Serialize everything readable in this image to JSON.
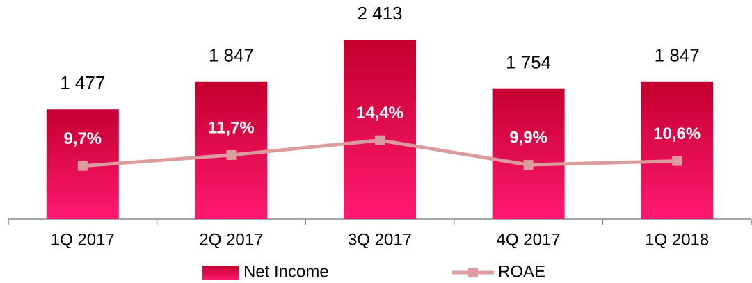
{
  "chart_data": {
    "type": "bar",
    "categories": [
      "1Q 2017",
      "2Q 2017",
      "3Q 2017",
      "4Q 2017",
      "1Q 2018"
    ],
    "series": [
      {
        "name": "Net Income",
        "color": "#c4002f",
        "values": [
          1477,
          1847,
          2413,
          1754,
          1847
        ],
        "value_labels": [
          "1 477",
          "1 847",
          "2 413",
          "1 754",
          "1 847"
        ]
      },
      {
        "name": "ROAE",
        "type": "line",
        "axis": "y2",
        "color": "#dc9c9c",
        "values": [
          9.7,
          11.7,
          14.4,
          9.9,
          10.6
        ],
        "value_labels": [
          "9,7%",
          "11,7%",
          "14,4%",
          "9,9%",
          "10,6%"
        ]
      }
    ],
    "ylim": [
      0,
      2800
    ],
    "y2lim": [
      0,
      38
    ],
    "legend": "bottom"
  }
}
